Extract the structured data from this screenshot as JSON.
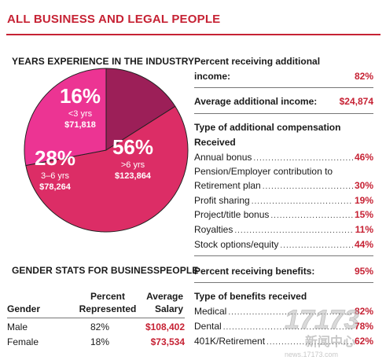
{
  "title": "ALL BUSINESS AND LEGAL PEOPLE",
  "chart_data": {
    "type": "pie",
    "title": "YEARS EXPERIENCE IN THE INDUSTRY",
    "slices": [
      {
        "percent_label": "56%",
        "value": 56,
        "range": ">6 yrs",
        "salary": "$123,864",
        "color": "#dc2d66"
      },
      {
        "percent_label": "28%",
        "value": 28,
        "range": "3–6 yrs",
        "salary": "$78,264",
        "color": "#ec3493"
      },
      {
        "percent_label": "16%",
        "value": 16,
        "range": "<3 yrs",
        "salary": "$71,818",
        "color": "#9c1f58"
      }
    ]
  },
  "additional_income": {
    "pct_label_line1": "Percent receiving additional",
    "pct_label_line2": "income:",
    "pct_value": "82%",
    "avg_label": "Average additional income:",
    "avg_value": "$24,874"
  },
  "compensation": {
    "heading_line1": "Type of additional compensation",
    "heading_line2": "Received",
    "items": [
      {
        "label": "Annual bonus",
        "value": "46%"
      },
      {
        "label": "Retirement plan",
        "value": "30%"
      },
      {
        "label": "Profit sharing",
        "value": "19%"
      },
      {
        "label": "Project/title bonus",
        "value": "15%"
      },
      {
        "label": "Royalties",
        "value": "11%"
      },
      {
        "label": "Stock options/equity",
        "value": "44%"
      }
    ],
    "pension_line": "Pension/Employer contribution to"
  },
  "benefits": {
    "pct_label": "Percent receiving benefits:",
    "pct_value": "95%",
    "heading": "Type of benefits received",
    "items": [
      {
        "label": "Medical",
        "value": "82%"
      },
      {
        "label": "Dental",
        "value": "78%"
      },
      {
        "label": "401K/Retirement",
        "value": "62%"
      }
    ]
  },
  "gender": {
    "title": "GENDER STATS FOR BUSINESSPEOPLE",
    "headers": {
      "gender": "Gender",
      "percent_line1": "Percent",
      "percent_line2": "Represented",
      "salary_line1": "Average",
      "salary_line2": "Salary"
    },
    "rows": [
      {
        "gender": "Male",
        "percent": "82%",
        "salary": "$108,402"
      },
      {
        "gender": "Female",
        "percent": "18%",
        "salary": "$73,534"
      }
    ]
  },
  "watermark": {
    "logo": "17173",
    "text": "新闻中心",
    "url": "news.17173.com"
  }
}
